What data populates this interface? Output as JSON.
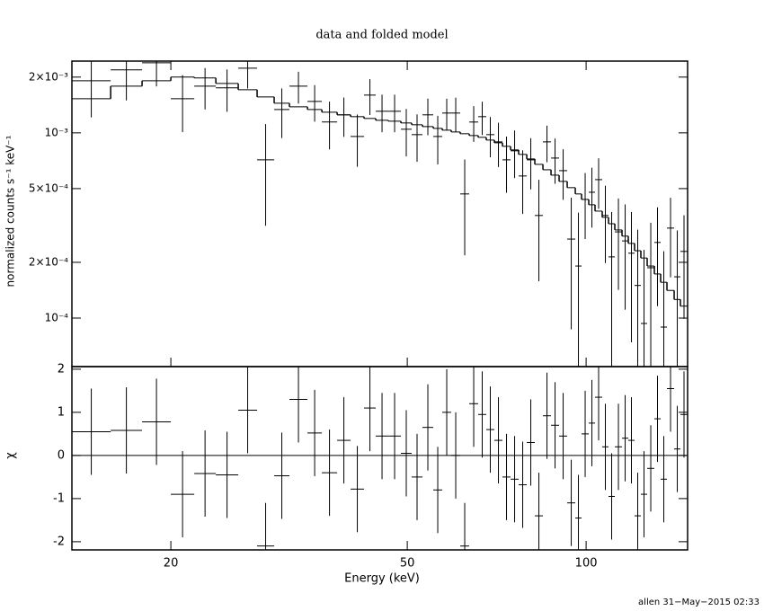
{
  "chart_data": {
    "type": "spectrum",
    "title": "data and folded model",
    "xlabel": "Energy (keV)",
    "log_x": true,
    "xlim": [
      13.63,
      148.19
    ],
    "xticks": [
      20,
      50,
      100
    ],
    "bins": [
      13.63,
      15.84,
      17.89,
      20,
      21.9,
      23.81,
      25.97,
      27.94,
      29.85,
      31.67,
      33.96,
      35.91,
      38.1,
      40.14,
      42.29,
      44.25,
      46.46,
      48.78,
      50.86,
      53.03,
      55.3,
      57.26,
      59.29,
      61.39,
      63.57,
      65.82,
      67.91,
      70.08,
      72.31,
      74.62,
      76.99,
      79.45,
      81.97,
      84.59,
      87.28,
      90.06,
      92.93,
      95.89,
      98.25,
      101.03,
      103.52,
      106.44,
      109.07,
      111.77,
      114.93,
      117.76,
      120.66,
      123.64,
      126.7,
      130.28,
      133.49,
      136.79,
      140.66,
      144.13,
      148.19
    ],
    "upper": {
      "ylabel": "normalized counts s⁻¹ keV⁻¹",
      "log_y": true,
      "ylim": [
        5.47e-05,
        0.00244
      ],
      "yticks": [
        {
          "value": 0.0001,
          "label": "10⁻⁴"
        },
        {
          "value": 0.0002,
          "label": "2×10⁻⁴"
        },
        {
          "value": 0.0005,
          "label": "5×10⁻⁴"
        },
        {
          "value": 0.001,
          "label": "10⁻³"
        },
        {
          "value": 0.002,
          "label": "2×10⁻³"
        }
      ],
      "data": {
        "color": "#000000",
        "values": [
          0.001912,
          0.002187,
          0.002391,
          0.001529,
          0.001788,
          0.001749,
          0.002236,
          0.000715,
          0.001337,
          0.001788,
          0.001479,
          0.001144,
          0.001251,
          0.000956,
          0.001599,
          0.001308,
          0.001308,
          0.001046,
          0.000978,
          0.001251,
          0.000956,
          0.001279,
          0.001279,
          0.000468,
          0.001144,
          0.001223,
          0.000978,
          0.000894,
          0.000715,
          0.0008,
          0.000585,
          0.000715,
          0.000358,
          0.000894,
          0.000731,
          0.000625,
          0.000267,
          0.000191,
          0.000437,
          0.000478,
          0.000559,
          0.000358,
          0.000214,
          0.000292,
          0.000261,
          0.000224,
          0.00015,
          9.35e-05,
          0.000187,
          0.000256,
          8.94e-05,
          0.000306,
          0.000167,
          0.000229
        ],
        "errors": [
          0.0007,
          0.00069,
          0.00061,
          0.00052,
          0.00045,
          0.00045,
          0.0005,
          0.0004,
          0.0004,
          0.00035,
          0.00033,
          0.00033,
          0.0003,
          0.0003,
          0.00035,
          0.0003,
          0.0003,
          0.0003,
          0.00028,
          0.00028,
          0.00028,
          0.00025,
          0.00027,
          0.00025,
          0.00025,
          0.00025,
          0.00024,
          0.00024,
          0.00024,
          0.00023,
          0.00022,
          0.00022,
          0.0002,
          0.0002,
          0.0002,
          0.00019,
          0.00018,
          0.00018,
          0.00017,
          0.00017,
          0.00017,
          0.00016,
          0.00016,
          0.00015,
          0.00015,
          0.00015,
          0.00015,
          0.00014,
          0.00014,
          0.00014,
          0.00014,
          0.00014,
          0.00013,
          0.00013
        ]
      },
      "model": {
        "color": "#000000",
        "values": [
          0.001529,
          0.001788,
          0.001912,
          0.002,
          0.001978,
          0.001849,
          0.00171,
          0.001564,
          0.001446,
          0.001383,
          0.001337,
          0.001293,
          0.001251,
          0.001223,
          0.001196,
          0.001169,
          0.001156,
          0.001131,
          0.001106,
          0.001081,
          0.001057,
          0.001034,
          0.001011,
          0.000989,
          0.000967,
          0.000946,
          0.000914,
          0.000884,
          0.000846,
          0.000809,
          0.000765,
          0.000723,
          0.000676,
          0.000632,
          0.000591,
          0.000547,
          0.000506,
          0.000468,
          0.000437,
          0.000409,
          0.000378,
          0.00035,
          0.000323,
          0.000299,
          0.000277,
          0.000253,
          0.000231,
          0.000211,
          0.000191,
          0.000173,
          0.000156,
          0.000141,
          0.000126,
          0.000116
        ]
      }
    },
    "lower": {
      "ylabel": "χ",
      "ylim": [
        -2.19,
        2.06
      ],
      "yticks": [
        -2,
        -1,
        0,
        1,
        2
      ],
      "color": "#000000",
      "error": 1,
      "residuals": [
        0.55,
        0.58,
        0.78,
        -0.9,
        -0.42,
        -0.45,
        1.05,
        -2.1,
        -0.47,
        1.3,
        0.52,
        -0.4,
        0.35,
        -0.78,
        1.1,
        0.45,
        0.45,
        0.05,
        -0.5,
        0.65,
        -0.8,
        1,
        0,
        -2.1,
        1.2,
        0.95,
        0.6,
        0.35,
        -0.5,
        -0.55,
        -0.68,
        0.3,
        -1.4,
        0.92,
        0.7,
        0.45,
        -1.1,
        -1.45,
        0.5,
        0.75,
        1.35,
        0.2,
        -0.95,
        0.2,
        0.4,
        0.35,
        -1.4,
        -0.9,
        -0.3,
        0.85,
        -0.55,
        1.55,
        0.15,
        0.95
      ],
      "reference_line": {
        "value": 0,
        "color": "#00dd00"
      }
    },
    "footer": "allen 31−May−2015 02:33"
  }
}
